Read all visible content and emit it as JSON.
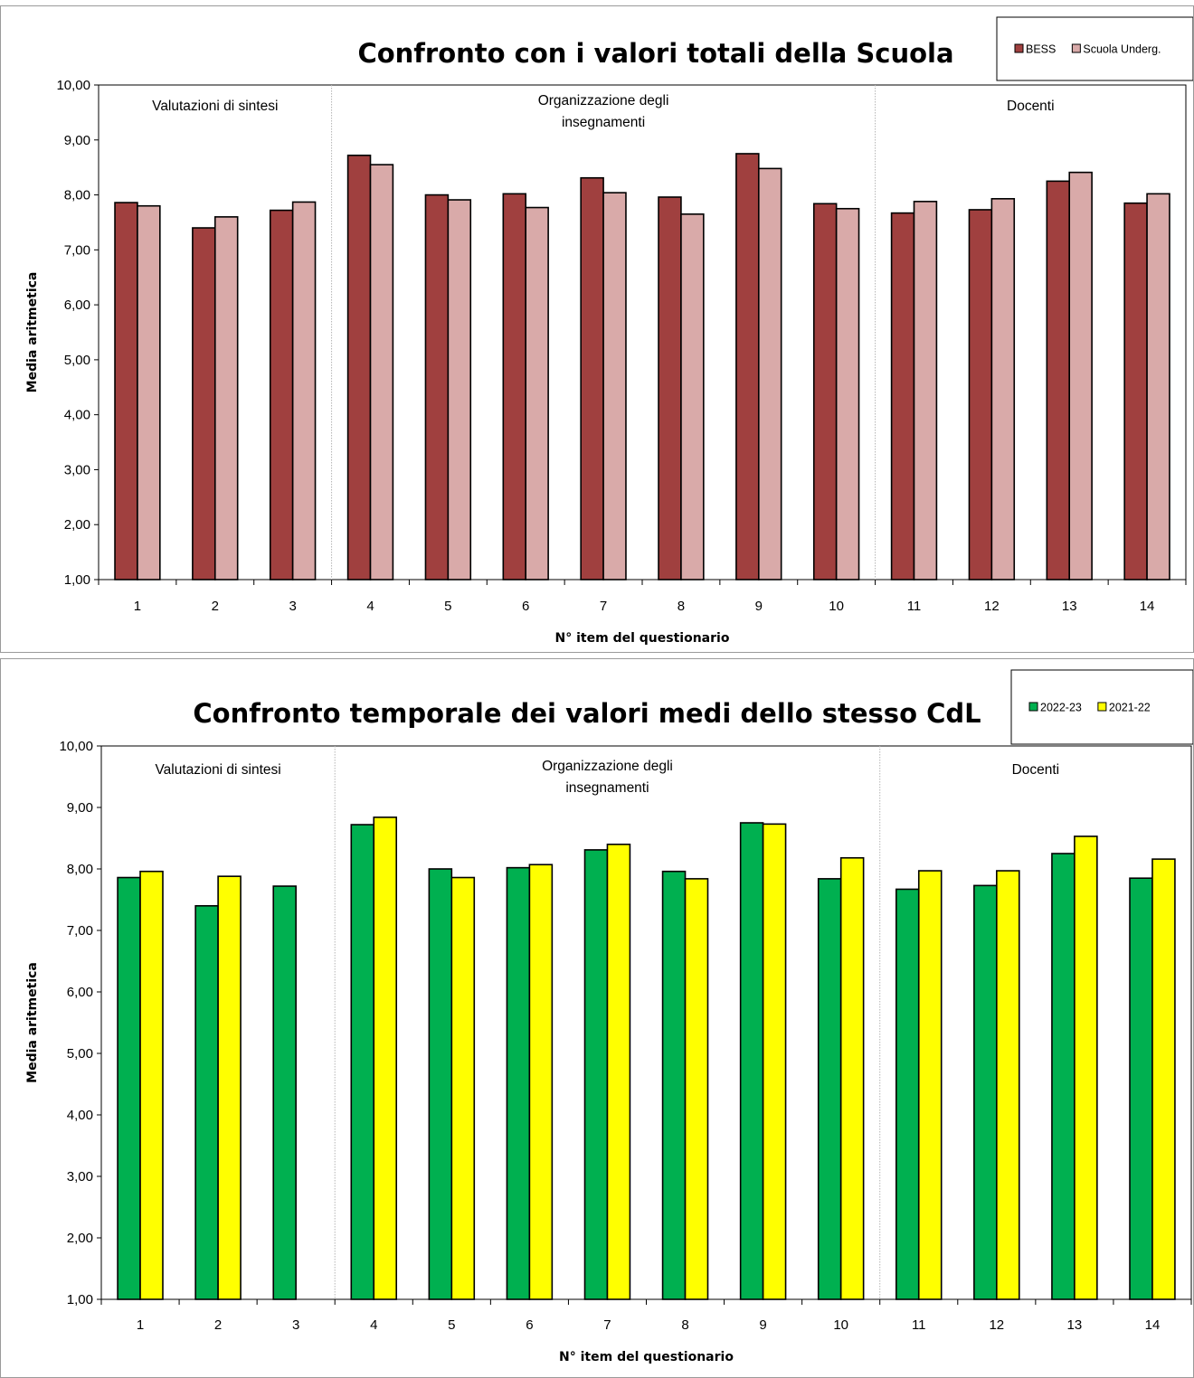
{
  "chart_data": [
    {
      "type": "bar",
      "title": "Confronto con i valori totali della Scuola",
      "xlabel": "N° item del questionario",
      "ylabel": "Media aritmetica",
      "ylim": [
        1,
        10
      ],
      "yticks": [
        "1,00",
        "2,00",
        "3,00",
        "4,00",
        "5,00",
        "6,00",
        "7,00",
        "8,00",
        "9,00",
        "10,00"
      ],
      "categories": [
        "1",
        "2",
        "3",
        "4",
        "5",
        "6",
        "7",
        "8",
        "9",
        "10",
        "11",
        "12",
        "13",
        "14"
      ],
      "series": [
        {
          "name": "BESS",
          "color": "#a0403f",
          "values": [
            7.86,
            7.4,
            7.72,
            8.72,
            8.0,
            8.02,
            8.31,
            7.96,
            8.75,
            7.84,
            7.67,
            7.73,
            8.25,
            7.85
          ]
        },
        {
          "name": "Scuola Underg.",
          "color": "#d9aaa9",
          "values": [
            7.8,
            7.6,
            7.87,
            8.55,
            7.91,
            7.77,
            8.04,
            7.65,
            8.48,
            7.75,
            7.88,
            7.93,
            8.41,
            8.02
          ]
        }
      ],
      "sections": [
        {
          "label": [
            "Valutazioni di sintesi"
          ]
        },
        {
          "label": [
            "Organizzazione degli",
            "insegnamenti"
          ]
        },
        {
          "label": [
            "Docenti"
          ]
        }
      ],
      "legend_position": "top-right",
      "grid": false
    },
    {
      "type": "bar",
      "title": "Confronto temporale dei valori medi dello stesso CdL",
      "xlabel": "N° item del questionario",
      "ylabel": "Media aritmetica",
      "ylim": [
        1,
        10
      ],
      "yticks": [
        "1,00",
        "2,00",
        "3,00",
        "4,00",
        "5,00",
        "6,00",
        "7,00",
        "8,00",
        "9,00",
        "10,00"
      ],
      "categories": [
        "1",
        "2",
        "3",
        "4",
        "5",
        "6",
        "7",
        "8",
        "9",
        "10",
        "11",
        "12",
        "13",
        "14"
      ],
      "series": [
        {
          "name": "2022-23",
          "color": "#00b050",
          "values": [
            7.86,
            7.4,
            7.72,
            8.72,
            8.0,
            8.02,
            8.31,
            7.96,
            8.75,
            7.84,
            7.67,
            7.73,
            8.25,
            7.85
          ]
        },
        {
          "name": "2021-22",
          "color": "#ffff00",
          "values": [
            7.96,
            7.88,
            null,
            8.84,
            7.86,
            8.07,
            8.4,
            7.84,
            8.73,
            8.18,
            7.97,
            7.97,
            8.53,
            8.16
          ]
        }
      ],
      "sections": [
        {
          "label": [
            "Valutazioni di sintesi"
          ]
        },
        {
          "label": [
            "Organizzazione degli",
            "insegnamenti"
          ]
        },
        {
          "label": [
            "Docenti"
          ]
        }
      ],
      "legend_position": "top-right",
      "grid": false
    }
  ]
}
